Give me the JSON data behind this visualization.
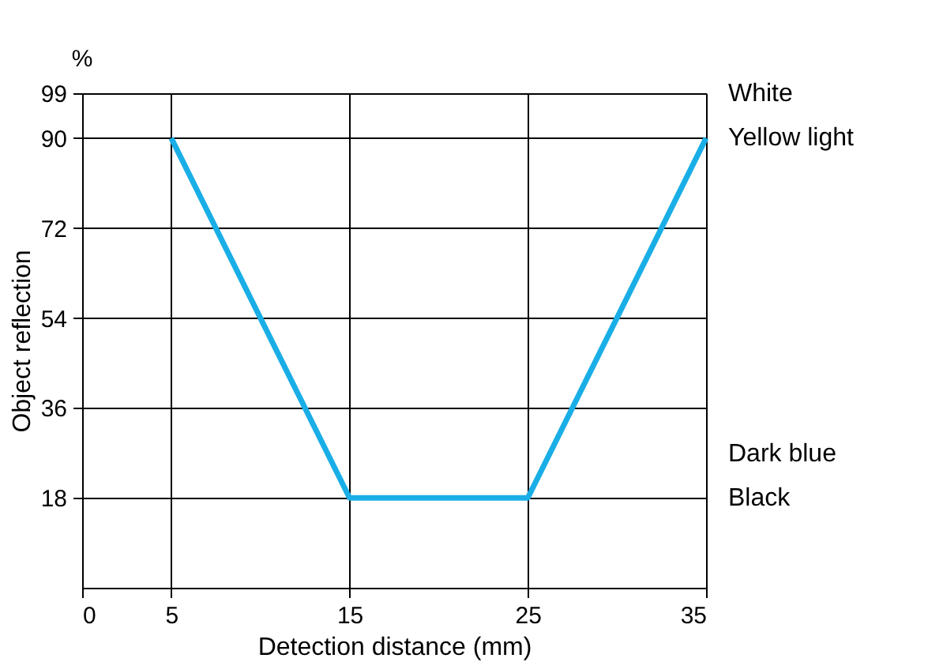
{
  "chart_data": {
    "type": "line",
    "xlabel": "Detection distance (mm)",
    "ylabel": "Object reflection",
    "annotations": [
      "%",
      "White",
      "Yellow light",
      "Dark blue",
      "Black"
    ],
    "x": [
      5,
      15,
      25,
      35
    ],
    "series": [
      {
        "color": "#1aaee6",
        "values": [
          90,
          18,
          18,
          90
        ]
      }
    ],
    "xlim": [
      0,
      35
    ],
    "xticks": [
      0,
      5,
      15,
      25,
      35
    ],
    "ylim": [
      0,
      99
    ],
    "yticks": [
      18,
      36,
      54,
      72,
      90,
      99
    ],
    "grid": true,
    "marker": "none",
    "line_style": "solid"
  }
}
